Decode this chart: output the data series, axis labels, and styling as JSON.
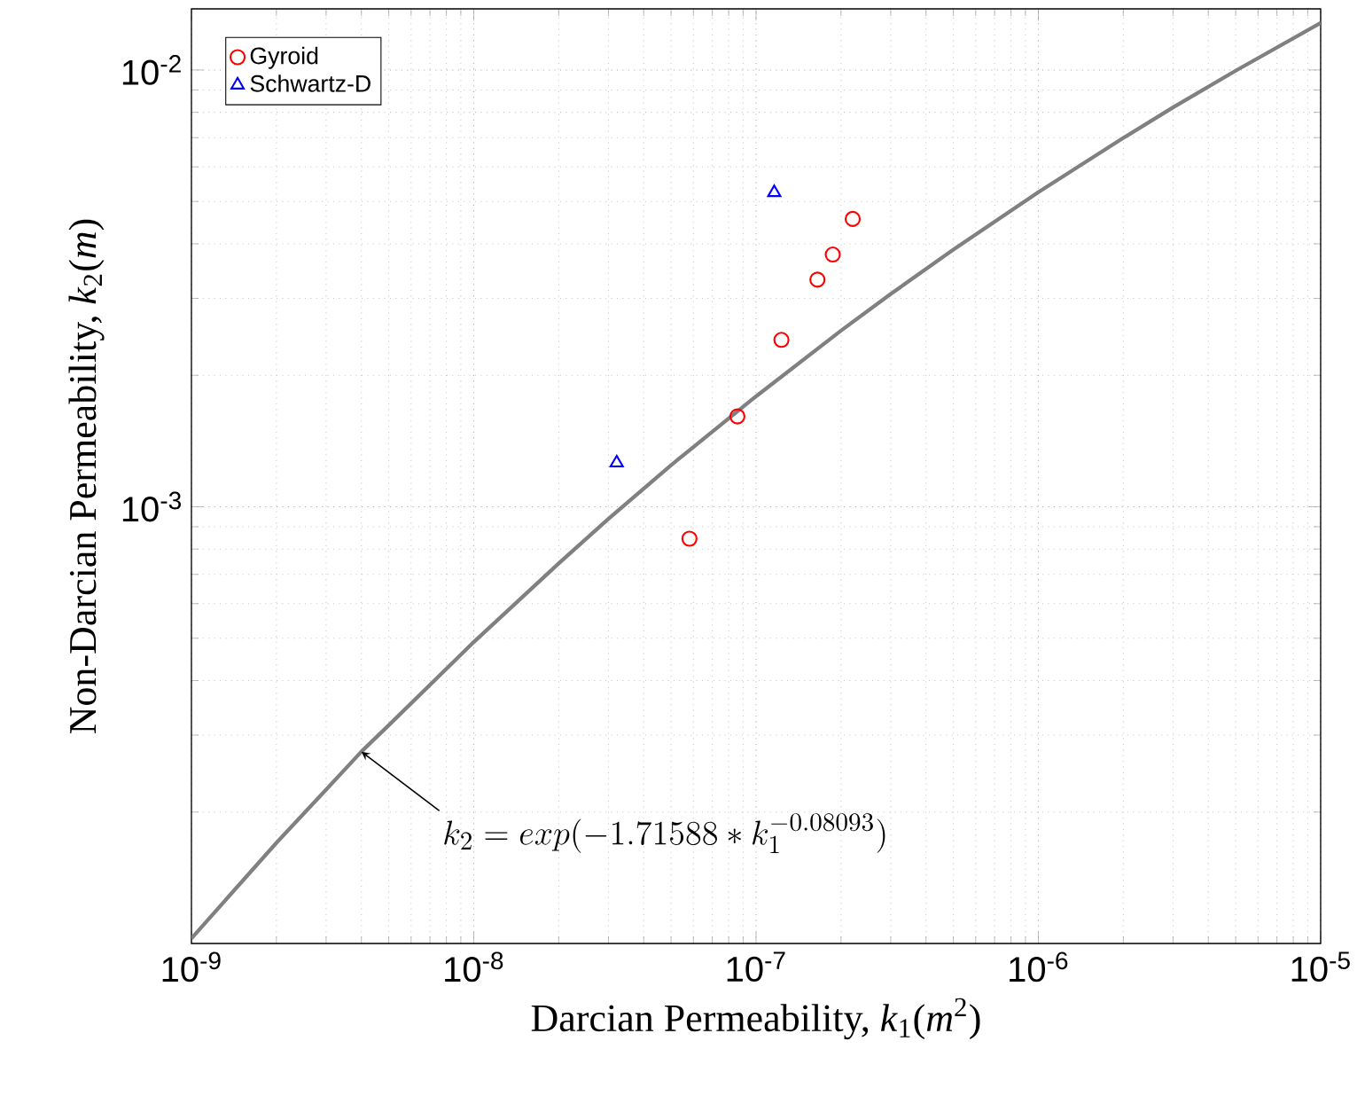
{
  "chart_data": {
    "type": "scatter",
    "xlabel": "Darcian Permeability, *k*$_{1}$(*m*$^{2}$)",
    "ylabel": "Non-Darcian Permeability, *k*$_{2}$(*m*)",
    "log": "xy",
    "grid": true,
    "legend": "top left",
    "xlim": [
      1e-09,
      1e-05
    ],
    "ylim": [
      0.0001,
      0.0138
    ],
    "xticks": [
      {
        "value": 1e-09,
        "label": "10$^{-9}$"
      },
      {
        "value": 1e-08,
        "label": "10$^{-8}$"
      },
      {
        "value": 1e-07,
        "label": "10$^{-7}$"
      },
      {
        "value": 1e-06,
        "label": "10$^{-6}$"
      },
      {
        "value": 1e-05,
        "label": "10$^{-5}$"
      }
    ],
    "yticks": [
      {
        "value": 0.001,
        "label": "10$^{-3}$"
      },
      {
        "value": 0.01,
        "label": "10$^{-2}$"
      }
    ],
    "series": [
      {
        "name": "Gyroid",
        "marker": "circle",
        "color": "#ff0000",
        "x": [
          5.81e-08,
          8.59e-08,
          1.23e-07,
          1.65e-07,
          1.87e-07,
          2.2e-07
        ],
        "values": [
          0.000845,
          0.00161,
          0.00241,
          0.00331,
          0.00378,
          0.00456
        ]
      },
      {
        "name": "Schwartz-D",
        "marker": "triangle",
        "color": "#0000ff",
        "x": [
          3.21e-08,
          1.16e-07
        ],
        "values": [
          0.00126,
          0.00524
        ]
      },
      {
        "type": "line",
        "marker": "none",
        "line_style": "solid",
        "color": "#808080",
        "x": [
          1e-09,
          2e-09,
          3e-09,
          4e-09,
          5e-09,
          1e-08,
          2e-08,
          3e-08,
          5e-08,
          1e-07,
          2e-07,
          3e-07,
          5e-07,
          1e-06,
          2e-06,
          3e-06,
          5e-06,
          1e-05
        ],
        "values": [
          0.0001027,
          0.00017,
          0.000225,
          0.000275,
          0.000316,
          0.00049,
          0.000742,
          0.000938,
          0.001245,
          0.00179,
          0.00253,
          0.00307,
          0.00388,
          0.00525,
          0.00699,
          0.00821,
          0.00996,
          0.01282
        ]
      }
    ],
    "annotations": [
      {
        "text": "k_2 = exp(-1.71588 * k_1^{-0.08093})",
        "x": 4e-09,
        "y": 0.000275
      }
    ]
  }
}
